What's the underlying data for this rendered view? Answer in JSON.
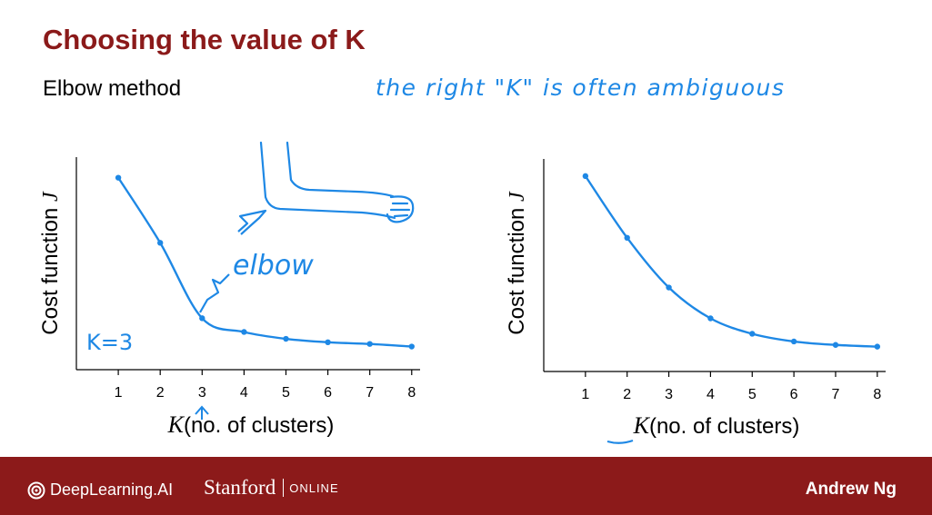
{
  "slide": {
    "title": "Choosing the value of K",
    "subtitle": "Elbow method",
    "annotation": "the right \"K\" is often ambiguous",
    "colors": {
      "title": "#8b1a1a",
      "footer": "#8c1a1a",
      "ink": "#1e88e5"
    }
  },
  "footer": {
    "deeplearning": "DeepLearning.AI",
    "stanford": "Stanford",
    "online": "ONLINE",
    "author": "Andrew Ng"
  },
  "chart_data": [
    {
      "type": "line",
      "xlabel_var": "K",
      "xlabel_text": "(no. of clusters)",
      "ylabel": "Cost function",
      "ylabel_var": "J",
      "x": [
        1,
        2,
        3,
        4,
        5,
        6,
        7,
        8
      ],
      "y": [
        100,
        62,
        18,
        10,
        6,
        4,
        3,
        1.5
      ],
      "xlim": [
        0,
        8
      ],
      "ylim": [
        -12,
        112
      ],
      "grid": false,
      "annotations": {
        "elbow_label": "elbow",
        "k_label": "K=3"
      }
    },
    {
      "type": "line",
      "xlabel_var": "K",
      "xlabel_text": "(no. of clusters)",
      "ylabel": "Cost function",
      "ylabel_var": "J",
      "x": [
        1,
        2,
        3,
        4,
        5,
        6,
        7,
        8
      ],
      "y": [
        100,
        64,
        35,
        17,
        8,
        3.5,
        1.5,
        0.5
      ],
      "xlim": [
        0,
        8
      ],
      "ylim": [
        -14,
        110
      ],
      "grid": false
    }
  ]
}
